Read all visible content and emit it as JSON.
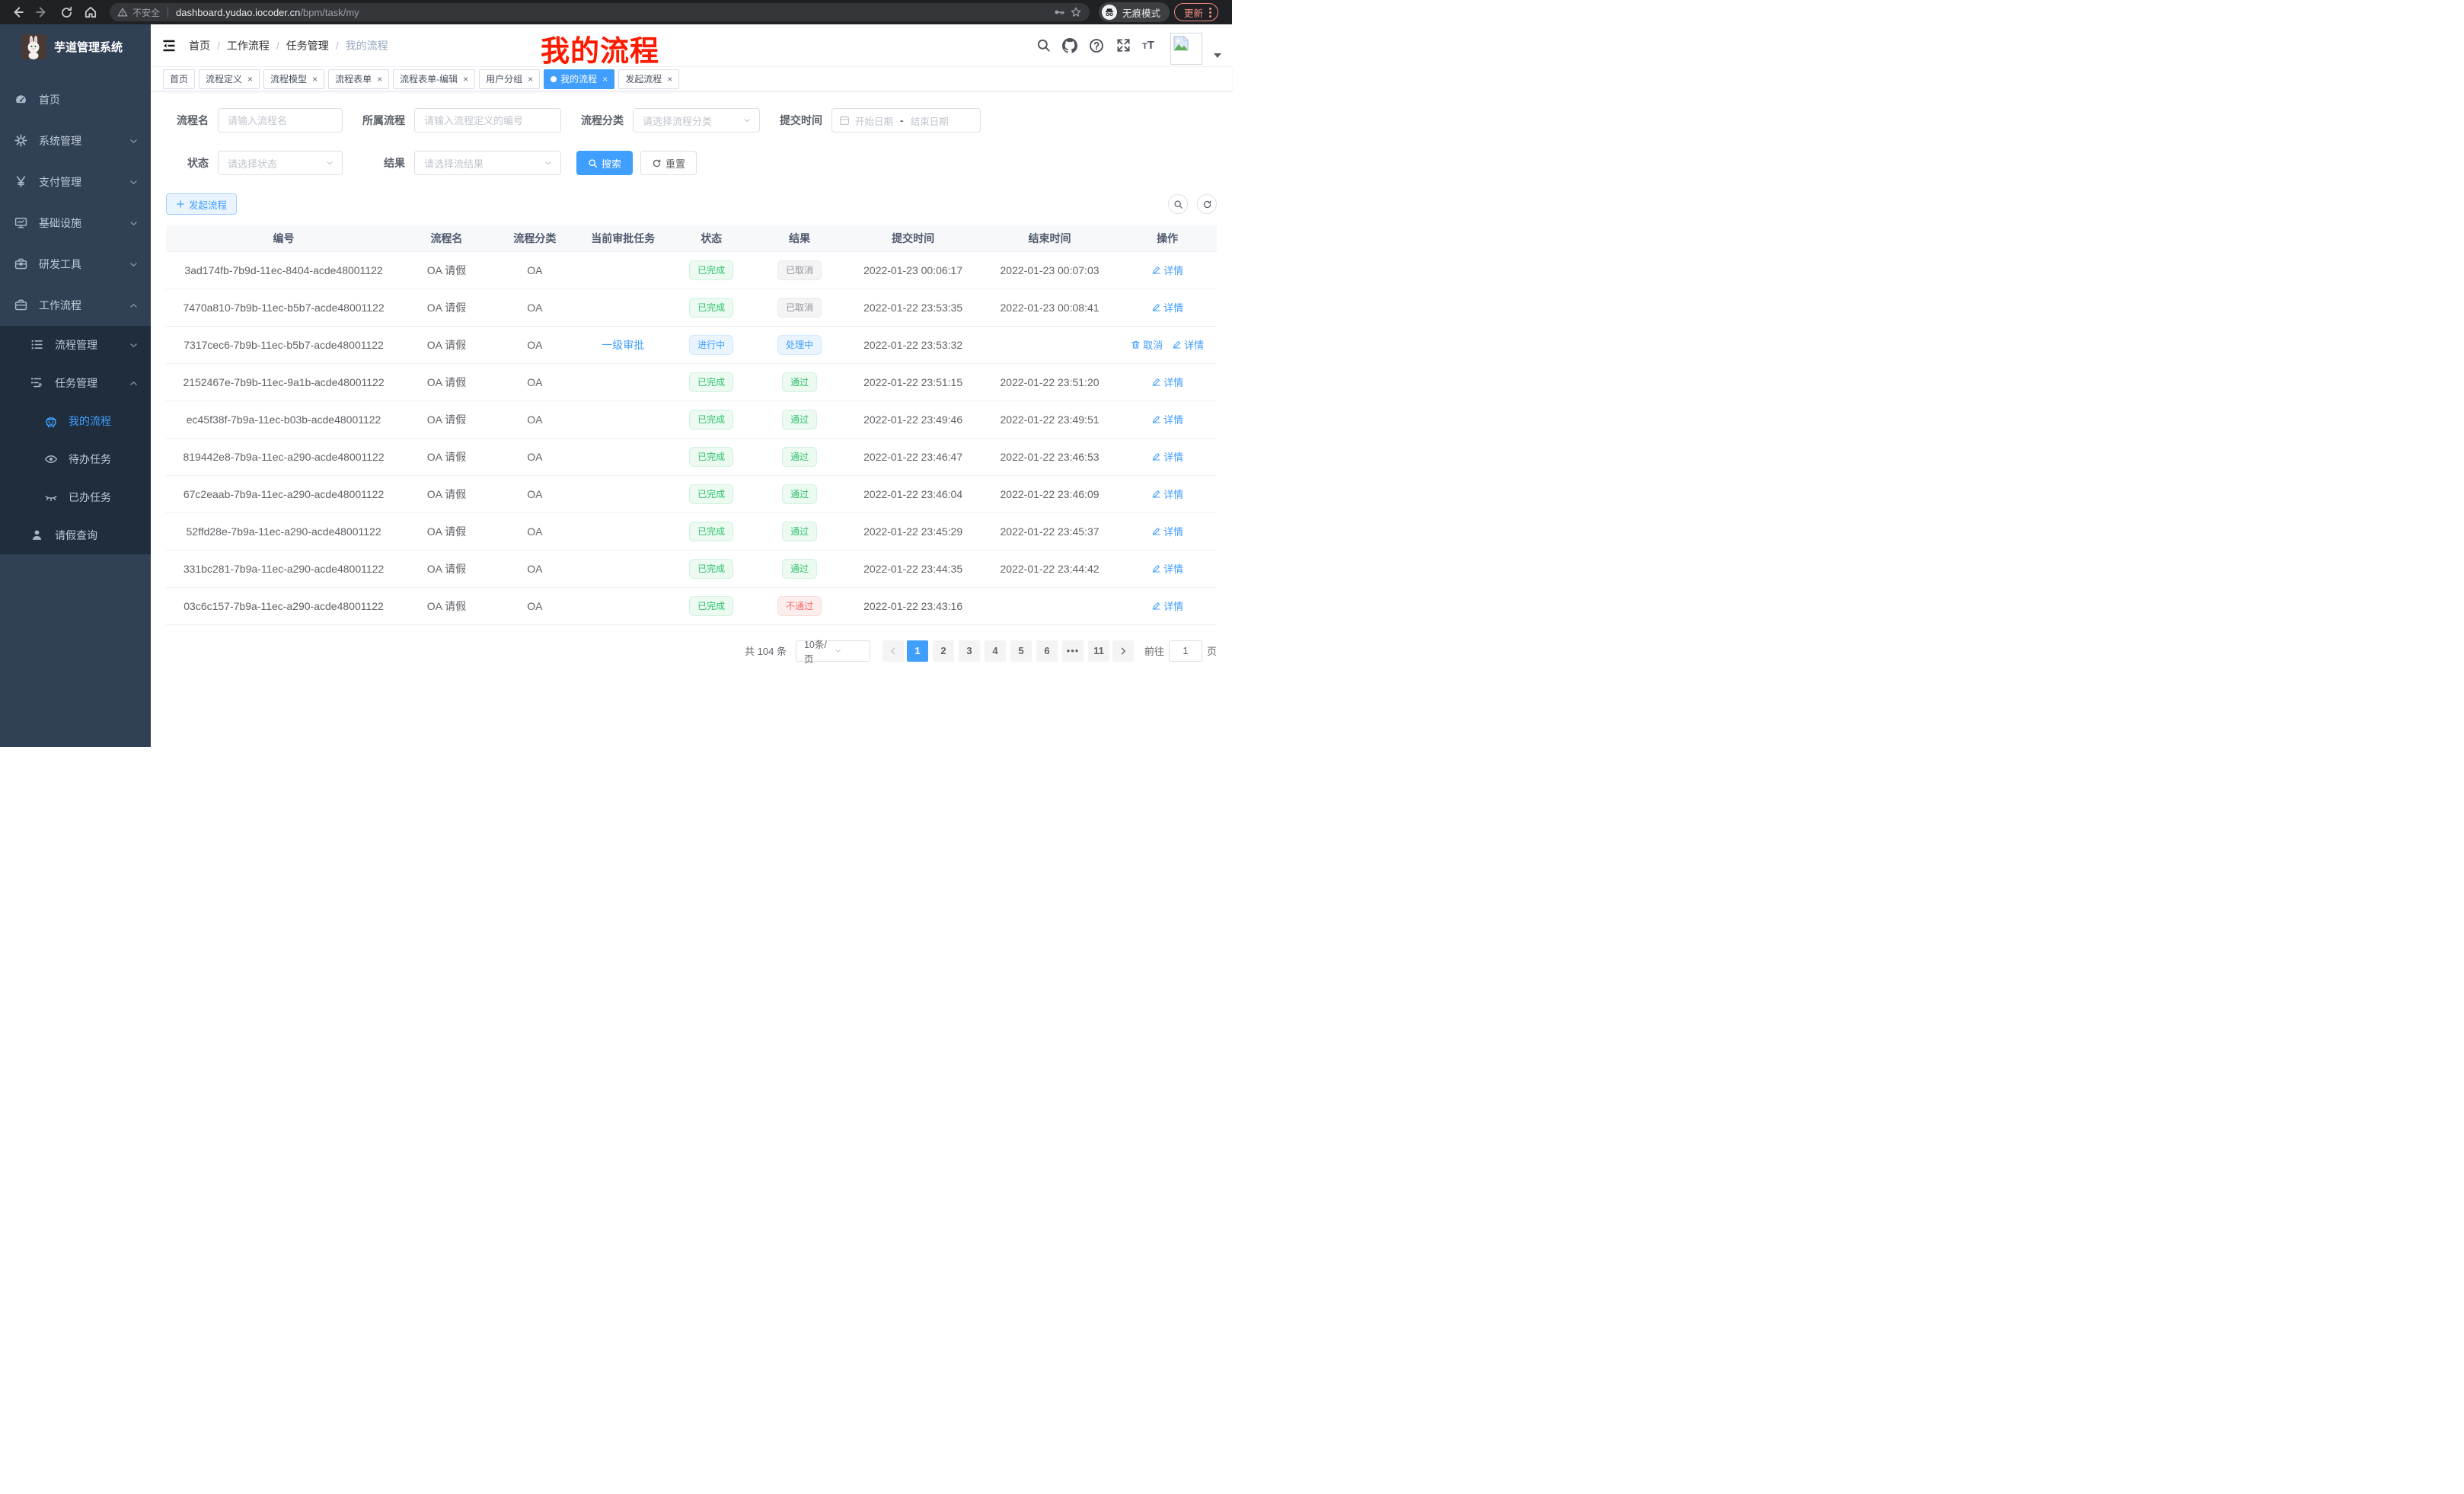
{
  "browser": {
    "security_warning": "不安全",
    "url_host": "dashboard.yudao.iocoder.cn",
    "url_path": "/bpm/task/my",
    "incognito_label": "无痕模式",
    "update_button": "更新"
  },
  "sidebar": {
    "logo_title": "芋道管理系统",
    "menu": [
      {
        "label": "首页",
        "icon": "dashboard-icon",
        "level": 1
      },
      {
        "label": "系统管理",
        "icon": "gear-icon",
        "level": 1,
        "chevron": "down"
      },
      {
        "label": "支付管理",
        "icon": "yen-icon",
        "level": 1,
        "chevron": "down"
      },
      {
        "label": "基础设施",
        "icon": "monitor-icon",
        "level": 1,
        "chevron": "down"
      },
      {
        "label": "研发工具",
        "icon": "toolbox-icon",
        "level": 1,
        "chevron": "down"
      },
      {
        "label": "工作流程",
        "icon": "briefcase-icon",
        "level": 1,
        "chevron": "up"
      },
      {
        "label": "流程管理",
        "icon": "tree-list-icon",
        "level": 2,
        "chevron": "down",
        "sub": true
      },
      {
        "label": "任务管理",
        "icon": "flow-icon",
        "level": 2,
        "chevron": "up",
        "sub": true
      },
      {
        "label": "我的流程",
        "icon": "robot-icon",
        "level": 3,
        "active": true,
        "sub": true
      },
      {
        "label": "待办任务",
        "icon": "eye-open-icon",
        "level": 3,
        "sub": true
      },
      {
        "label": "已办任务",
        "icon": "eye-closed-icon",
        "level": 3,
        "sub": true
      },
      {
        "label": "请假查询",
        "icon": "user-icon",
        "level": 2,
        "sub": true
      }
    ]
  },
  "header": {
    "breadcrumb": [
      "首页",
      "工作流程",
      "任务管理",
      "我的流程"
    ],
    "annotation": "我的流程"
  },
  "tabs": [
    {
      "label": "首页",
      "closable": false,
      "active": false
    },
    {
      "label": "流程定义",
      "closable": true,
      "active": false
    },
    {
      "label": "流程模型",
      "closable": true,
      "active": false
    },
    {
      "label": "流程表单",
      "closable": true,
      "active": false
    },
    {
      "label": "流程表单-编辑",
      "closable": true,
      "active": false
    },
    {
      "label": "用户分组",
      "closable": true,
      "active": false
    },
    {
      "label": "我的流程",
      "closable": true,
      "active": true
    },
    {
      "label": "发起流程",
      "closable": true,
      "active": false
    }
  ],
  "filters": {
    "name": {
      "label": "流程名",
      "placeholder": "请输入流程名"
    },
    "definition": {
      "label": "所属流程",
      "placeholder": "请输入流程定义的编号"
    },
    "category": {
      "label": "流程分类",
      "placeholder": "请选择流程分类"
    },
    "submit_time": {
      "label": "提交时间",
      "start_placeholder": "开始日期",
      "separator": "-",
      "end_placeholder": "结束日期"
    },
    "status": {
      "label": "状态",
      "placeholder": "请选择状态"
    },
    "result": {
      "label": "结果",
      "placeholder": "请选择流结果"
    },
    "search_button": "搜索",
    "reset_button": "重置"
  },
  "toolbar": {
    "create_button": "发起流程"
  },
  "table": {
    "columns": [
      "编号",
      "流程名",
      "流程分类",
      "当前审批任务",
      "状态",
      "结果",
      "提交时间",
      "结束时间",
      "操作"
    ],
    "rows": [
      {
        "id": "3ad174fb-7b9d-11ec-8404-acde48001122",
        "name": "OA 请假",
        "category": "OA",
        "current_task": "",
        "status": "已完成",
        "status_type": "success",
        "result": "已取消",
        "result_type": "info",
        "submit_time": "2022-01-23 00:06:17",
        "end_time": "2022-01-23 00:07:03",
        "actions": [
          {
            "label": "详情",
            "icon": "edit-icon"
          }
        ]
      },
      {
        "id": "7470a810-7b9b-11ec-b5b7-acde48001122",
        "name": "OA 请假",
        "category": "OA",
        "current_task": "",
        "status": "已完成",
        "status_type": "success",
        "result": "已取消",
        "result_type": "info",
        "submit_time": "2022-01-22 23:53:35",
        "end_time": "2022-01-23 00:08:41",
        "actions": [
          {
            "label": "详情",
            "icon": "edit-icon"
          }
        ]
      },
      {
        "id": "7317cec6-7b9b-11ec-b5b7-acde48001122",
        "name": "OA 请假",
        "category": "OA",
        "current_task": "一级审批",
        "status": "进行中",
        "status_type": "primary",
        "result": "处理中",
        "result_type": "primary",
        "submit_time": "2022-01-22 23:53:32",
        "end_time": "",
        "actions": [
          {
            "label": "取消",
            "icon": "trash-icon"
          },
          {
            "label": "详情",
            "icon": "edit-icon"
          }
        ]
      },
      {
        "id": "2152467e-7b9b-11ec-9a1b-acde48001122",
        "name": "OA 请假",
        "category": "OA",
        "current_task": "",
        "status": "已完成",
        "status_type": "success",
        "result": "通过",
        "result_type": "success",
        "submit_time": "2022-01-22 23:51:15",
        "end_time": "2022-01-22 23:51:20",
        "actions": [
          {
            "label": "详情",
            "icon": "edit-icon"
          }
        ]
      },
      {
        "id": "ec45f38f-7b9a-11ec-b03b-acde48001122",
        "name": "OA 请假",
        "category": "OA",
        "current_task": "",
        "status": "已完成",
        "status_type": "success",
        "result": "通过",
        "result_type": "success",
        "submit_time": "2022-01-22 23:49:46",
        "end_time": "2022-01-22 23:49:51",
        "actions": [
          {
            "label": "详情",
            "icon": "edit-icon"
          }
        ]
      },
      {
        "id": "819442e8-7b9a-11ec-a290-acde48001122",
        "name": "OA 请假",
        "category": "OA",
        "current_task": "",
        "status": "已完成",
        "status_type": "success",
        "result": "通过",
        "result_type": "success",
        "submit_time": "2022-01-22 23:46:47",
        "end_time": "2022-01-22 23:46:53",
        "actions": [
          {
            "label": "详情",
            "icon": "edit-icon"
          }
        ]
      },
      {
        "id": "67c2eaab-7b9a-11ec-a290-acde48001122",
        "name": "OA 请假",
        "category": "OA",
        "current_task": "",
        "status": "已完成",
        "status_type": "success",
        "result": "通过",
        "result_type": "success",
        "submit_time": "2022-01-22 23:46:04",
        "end_time": "2022-01-22 23:46:09",
        "actions": [
          {
            "label": "详情",
            "icon": "edit-icon"
          }
        ]
      },
      {
        "id": "52ffd28e-7b9a-11ec-a290-acde48001122",
        "name": "OA 请假",
        "category": "OA",
        "current_task": "",
        "status": "已完成",
        "status_type": "success",
        "result": "通过",
        "result_type": "success",
        "submit_time": "2022-01-22 23:45:29",
        "end_time": "2022-01-22 23:45:37",
        "actions": [
          {
            "label": "详情",
            "icon": "edit-icon"
          }
        ]
      },
      {
        "id": "331bc281-7b9a-11ec-a290-acde48001122",
        "name": "OA 请假",
        "category": "OA",
        "current_task": "",
        "status": "已完成",
        "status_type": "success",
        "result": "通过",
        "result_type": "success",
        "submit_time": "2022-01-22 23:44:35",
        "end_time": "2022-01-22 23:44:42",
        "actions": [
          {
            "label": "详情",
            "icon": "edit-icon"
          }
        ]
      },
      {
        "id": "03c6c157-7b9a-11ec-a290-acde48001122",
        "name": "OA 请假",
        "category": "OA",
        "current_task": "",
        "status": "已完成",
        "status_type": "success",
        "result": "不通过",
        "result_type": "danger",
        "submit_time": "2022-01-22 23:43:16",
        "end_time": "",
        "actions": [
          {
            "label": "详情",
            "icon": "edit-icon"
          }
        ]
      }
    ]
  },
  "pagination": {
    "total": "共 104 条",
    "page_size": "10条/页",
    "pages": [
      "1",
      "2",
      "3",
      "4",
      "5",
      "6",
      "...",
      "11"
    ],
    "active_page": "1",
    "goto_label": "前往",
    "goto_value": "1",
    "goto_suffix": "页"
  },
  "colors": {
    "primary": "#409eff",
    "success": "#2dc26c",
    "danger": "#f56c6c",
    "info": "#909399",
    "sidebar_bg": "#304156",
    "submenu_bg": "#1f2d3d",
    "annotation_red": "#fd1a00"
  }
}
